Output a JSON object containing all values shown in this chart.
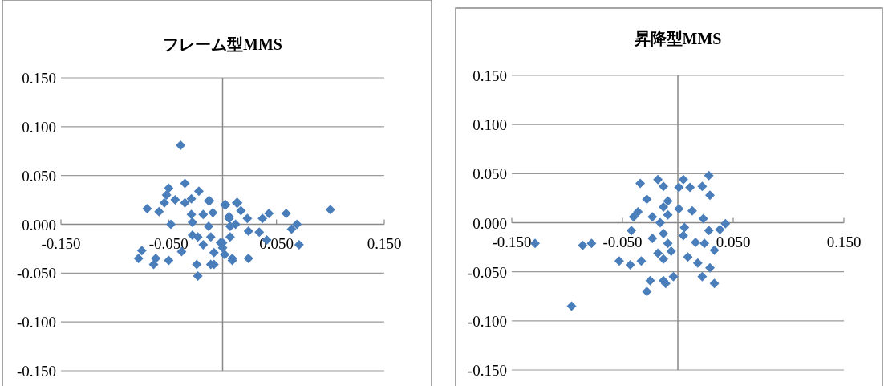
{
  "chart_data": [
    {
      "type": "scatter",
      "title": "フレーム型MMS",
      "color": "#4a7ebb",
      "marker": "diamond",
      "grid": "y",
      "xlim": [
        -0.15,
        0.15
      ],
      "ylim": [
        -0.15,
        0.15
      ],
      "xticks": [
        {
          "value": -0.15,
          "label": "-0.150"
        },
        {
          "value": -0.05,
          "label": "-0.050"
        },
        {
          "value": 0.05,
          "label": "0.050"
        },
        {
          "value": 0.15,
          "label": "0.150"
        }
      ],
      "yticks": [
        {
          "value": -0.15,
          "label": "-0.150"
        },
        {
          "value": -0.1,
          "label": "-0.100"
        },
        {
          "value": -0.05,
          "label": "-0.050"
        },
        {
          "value": 0,
          "label": "0.000"
        },
        {
          "value": 0.05,
          "label": "0.050"
        },
        {
          "value": 0.1,
          "label": "0.100"
        },
        {
          "value": 0.15,
          "label": "0.150"
        }
      ],
      "x": [
        -0.039,
        -0.035,
        -0.022,
        -0.05,
        -0.052,
        -0.044,
        -0.054,
        -0.029,
        -0.035,
        -0.013,
        -0.07,
        -0.059,
        -0.029,
        -0.018,
        -0.009,
        0.002,
        0.013,
        0.006,
        -0.048,
        -0.028,
        -0.013,
        0.007,
        -0.023,
        -0.011,
        -0.018,
        0.0,
        -0.038,
        -0.075,
        -0.078,
        -0.062,
        -0.05,
        -0.064,
        -0.024,
        -0.011,
        0.009,
        -0.023,
        0.0,
        -0.008,
        0.1,
        0.059,
        0.043,
        0.037,
        0.069,
        0.064,
        0.034,
        0.041,
        0.071,
        0.024,
        0.009,
        0.002,
        0.014,
        0.003,
        0.023,
        0.012,
        0.024,
        0.017,
        0.006,
        0.007,
        -0.012,
        -0.008,
        -0.002,
        -0.028
      ],
      "values": [
        0.081,
        0.042,
        0.034,
        0.037,
        0.03,
        0.025,
        0.022,
        0.026,
        0.022,
        0.024,
        0.016,
        0.013,
        0.01,
        0.01,
        0.012,
        0.02,
        0.022,
        0.008,
        0.0,
        0.002,
        -0.002,
        -0.002,
        -0.013,
        -0.013,
        -0.021,
        -0.019,
        -0.028,
        -0.027,
        -0.035,
        -0.035,
        -0.037,
        -0.041,
        -0.041,
        -0.041,
        -0.035,
        -0.053,
        -0.024,
        -0.029,
        0.015,
        0.011,
        0.011,
        0.006,
        0.0,
        -0.005,
        -0.008,
        -0.016,
        -0.021,
        -0.035,
        -0.037,
        -0.031,
        0.022,
        0.02,
        0.006,
        0.0,
        -0.007,
        0.014,
        0.006,
        -0.013,
        0.024,
        -0.041,
        -0.019,
        -0.011
      ]
    },
    {
      "type": "scatter",
      "title": "昇降型MMS",
      "color": "#4a7ebb",
      "marker": "diamond",
      "grid": "y",
      "xlim": [
        -0.15,
        0.15
      ],
      "ylim": [
        -0.15,
        0.15
      ],
      "xticks": [
        {
          "value": -0.15,
          "label": "-0.150"
        },
        {
          "value": -0.05,
          "label": "-0.050"
        },
        {
          "value": 0.05,
          "label": "0.050"
        },
        {
          "value": 0.15,
          "label": "0.150"
        }
      ],
      "yticks": [
        {
          "value": -0.15,
          "label": "-0.150"
        },
        {
          "value": -0.1,
          "label": "-0.100"
        },
        {
          "value": -0.05,
          "label": "-0.050"
        },
        {
          "value": 0,
          "label": "0.000"
        },
        {
          "value": 0.05,
          "label": "0.050"
        },
        {
          "value": 0.1,
          "label": "0.100"
        },
        {
          "value": 0.15,
          "label": "0.150"
        }
      ],
      "x": [
        -0.129,
        -0.086,
        -0.078,
        -0.096,
        -0.034,
        -0.018,
        -0.013,
        -0.028,
        -0.036,
        -0.042,
        -0.053,
        -0.043,
        -0.033,
        -0.025,
        -0.028,
        -0.013,
        -0.018,
        -0.023,
        -0.016,
        -0.009,
        -0.013,
        -0.023,
        0.028,
        0.022,
        0.029,
        0.005,
        0.001,
        0.011,
        -0.009,
        0.001,
        0.013,
        0.023,
        0.043,
        0.038,
        0.028,
        0.006,
        0.005,
        0.016,
        0.024,
        0.033,
        -0.006,
        0.009,
        0.018,
        0.029,
        0.022,
        0.033,
        -0.004,
        -0.011,
        -0.013,
        -0.013,
        -0.009,
        -0.04
      ],
      "values": [
        -0.021,
        -0.023,
        -0.021,
        -0.085,
        0.04,
        0.044,
        0.037,
        0.024,
        0.011,
        -0.008,
        -0.039,
        -0.043,
        -0.039,
        -0.059,
        -0.07,
        -0.059,
        -0.031,
        -0.016,
        0.0,
        0.008,
        0.016,
        0.006,
        0.048,
        0.037,
        0.028,
        0.044,
        0.036,
        0.036,
        0.022,
        0.014,
        0.012,
        0.004,
        -0.001,
        -0.007,
        -0.008,
        -0.005,
        -0.013,
        -0.02,
        -0.021,
        -0.028,
        -0.029,
        -0.035,
        -0.041,
        -0.046,
        -0.055,
        -0.062,
        -0.055,
        -0.062,
        -0.011,
        -0.037,
        -0.021,
        0.006
      ]
    }
  ]
}
